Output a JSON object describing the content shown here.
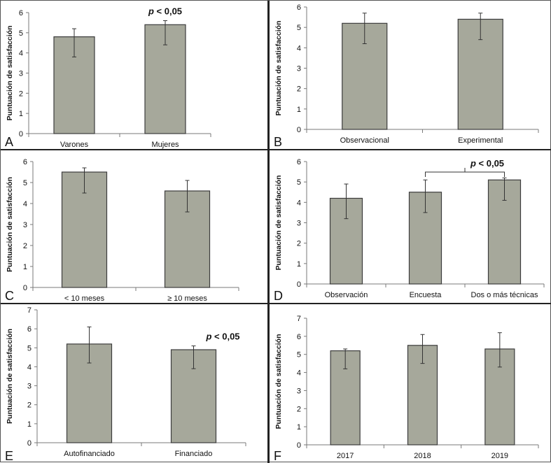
{
  "chart_data": [
    {
      "panel_label": "A",
      "type": "bar",
      "ylabel": "Puntuación de satisfacción",
      "ylim": [
        0,
        6
      ],
      "yticks": [
        0,
        1,
        2,
        3,
        4,
        5,
        6
      ],
      "categories": [
        "Varones",
        "Mujeres"
      ],
      "values": [
        4.8,
        5.4
      ],
      "error_low": [
        3.8,
        4.4
      ],
      "error_high": [
        5.2,
        5.6
      ],
      "annotation": "p < 0,05",
      "annotation_target": 1,
      "grid": false
    },
    {
      "panel_label": "B",
      "type": "bar",
      "ylabel": "Puntuación de satisfacción",
      "ylim": [
        0,
        6
      ],
      "yticks": [
        0,
        1,
        2,
        3,
        4,
        5,
        6
      ],
      "categories": [
        "Observacional",
        "Experimental"
      ],
      "values": [
        5.2,
        5.4
      ],
      "error_low": [
        4.2,
        4.4
      ],
      "error_high": [
        5.7,
        5.7
      ],
      "annotation": "",
      "grid": false
    },
    {
      "panel_label": "C",
      "type": "bar",
      "ylabel": "Puntuación de satisfacción",
      "ylim": [
        0,
        6
      ],
      "yticks": [
        0,
        1,
        2,
        3,
        4,
        5,
        6
      ],
      "categories": [
        "< 10 meses",
        "≥ 10 meses"
      ],
      "values": [
        5.5,
        4.6
      ],
      "error_low": [
        4.5,
        3.6
      ],
      "error_high": [
        5.7,
        5.1
      ],
      "annotation": "",
      "grid": false
    },
    {
      "panel_label": "D",
      "type": "bar",
      "ylabel": "Puntuación de satisfacción",
      "ylim": [
        0,
        6
      ],
      "yticks": [
        0,
        1,
        2,
        3,
        4,
        5,
        6
      ],
      "categories": [
        "Observación",
        "Encuesta",
        "Dos o más técnicas"
      ],
      "values": [
        4.2,
        4.5,
        5.1
      ],
      "error_low": [
        3.2,
        3.5,
        4.1
      ],
      "error_high": [
        4.9,
        5.1,
        5.2
      ],
      "annotation": "p < 0,05",
      "bracket": [
        1,
        2
      ],
      "grid": false
    },
    {
      "panel_label": "E",
      "type": "bar",
      "ylabel": "Puntuación de satisfacción",
      "ylim": [
        0,
        7
      ],
      "yticks": [
        0,
        1,
        2,
        3,
        4,
        5,
        6,
        7
      ],
      "categories": [
        "Autofinanciado",
        "Financiado"
      ],
      "values": [
        5.2,
        4.9
      ],
      "error_low": [
        4.2,
        3.9
      ],
      "error_high": [
        6.1,
        5.1
      ],
      "annotation": "p < 0,05",
      "annotation_target": 1,
      "grid": false
    },
    {
      "panel_label": "F",
      "type": "bar",
      "ylabel": "Puntuación de satisfacción",
      "ylim": [
        0,
        7
      ],
      "yticks": [
        0,
        1,
        2,
        3,
        4,
        5,
        6,
        7
      ],
      "categories": [
        "2017",
        "2018",
        "2019"
      ],
      "values": [
        5.2,
        5.5,
        5.3
      ],
      "error_low": [
        4.2,
        4.5,
        4.3
      ],
      "error_high": [
        5.3,
        6.1,
        6.2
      ],
      "annotation": "",
      "grid": false
    }
  ],
  "colors": {
    "bar_fill": "#a6a89b",
    "bar_stroke": "#3c3c3c",
    "axis": "#7a7a7a",
    "text": "#111111"
  }
}
